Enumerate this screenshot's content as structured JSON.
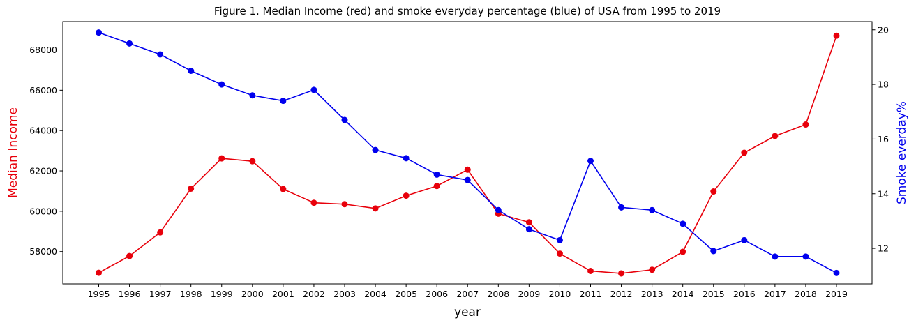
{
  "chart_data": {
    "type": "line",
    "title": "Figure 1. Median Income (red) and smoke everyday percentage (blue) of USA from 1995 to 2019",
    "xlabel": "year",
    "ylabel": "Median Income",
    "ylabel_right": "Smoke everday%",
    "grid": false,
    "x": [
      "1995",
      "1996",
      "1997",
      "1998",
      "1999",
      "2000",
      "2001",
      "2002",
      "2003",
      "2004",
      "2005",
      "2006",
      "2007",
      "2008",
      "2009",
      "2010",
      "2011",
      "2012",
      "2013",
      "2014",
      "2015",
      "2016",
      "2017",
      "2018",
      "2019"
    ],
    "ylim": [
      56400,
      69400
    ],
    "ylim_right": [
      10.7,
      20.3
    ],
    "yticks": [
      "58000",
      "60000",
      "62000",
      "64000",
      "66000",
      "68000"
    ],
    "yticks_right": [
      "12",
      "14",
      "16",
      "18",
      "20"
    ],
    "series": [
      {
        "name": "Median Income",
        "axis": "left",
        "color": "#e8000b",
        "marker": "circle",
        "values": [
          56950,
          57780,
          58950,
          61120,
          62620,
          62480,
          61100,
          60420,
          60350,
          60140,
          60770,
          61250,
          62060,
          59880,
          59450,
          57900,
          57040,
          56920,
          57100,
          57990,
          60980,
          62900,
          63730,
          64300,
          68700
        ]
      },
      {
        "name": "Smoke everyday %",
        "axis": "right",
        "color": "#0000ee",
        "marker": "circle",
        "values": [
          19.9,
          19.5,
          19.1,
          18.5,
          18.0,
          17.6,
          17.4,
          17.8,
          16.7,
          15.6,
          15.3,
          14.7,
          14.5,
          13.4,
          12.7,
          12.3,
          15.2,
          13.5,
          13.4,
          12.9,
          11.9,
          12.3,
          11.7,
          11.7,
          11.1
        ]
      }
    ]
  }
}
